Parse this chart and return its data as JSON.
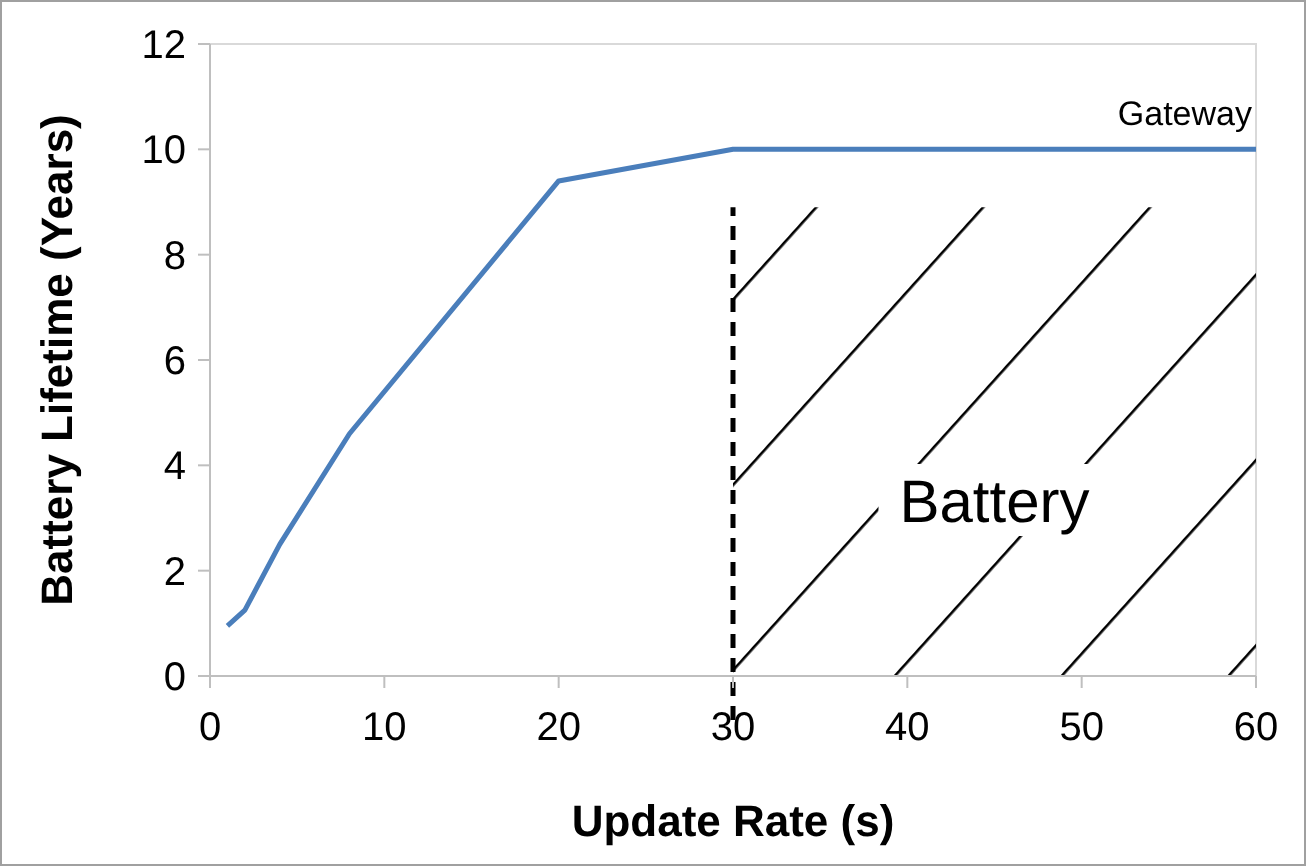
{
  "chart_data": {
    "type": "line",
    "xlabel": "Update Rate (s)",
    "ylabel": "Battery Lifetime (Years)",
    "xlim": [
      0,
      60
    ],
    "xticks": [
      0,
      10,
      20,
      30,
      40,
      50,
      60
    ],
    "ylim": [
      0,
      12
    ],
    "yticks": [
      0,
      2,
      4,
      6,
      8,
      10,
      12
    ],
    "grid": false,
    "marker": "none",
    "line_style": "solid",
    "series": [
      {
        "name": "Gateway",
        "color": "#4a7ebb",
        "x": [
          1,
          2,
          4,
          8,
          20,
          30,
          60
        ],
        "values": [
          0.95,
          1.25,
          2.5,
          4.6,
          9.4,
          10,
          10
        ]
      }
    ],
    "ref_lines": [
      {
        "axis": "x",
        "value": 30,
        "line_style": "dashed",
        "color": "#000000"
      }
    ],
    "bands": [
      {
        "axis": "x",
        "from": 30,
        "to": 60,
        "label": "Battery"
      }
    ]
  }
}
